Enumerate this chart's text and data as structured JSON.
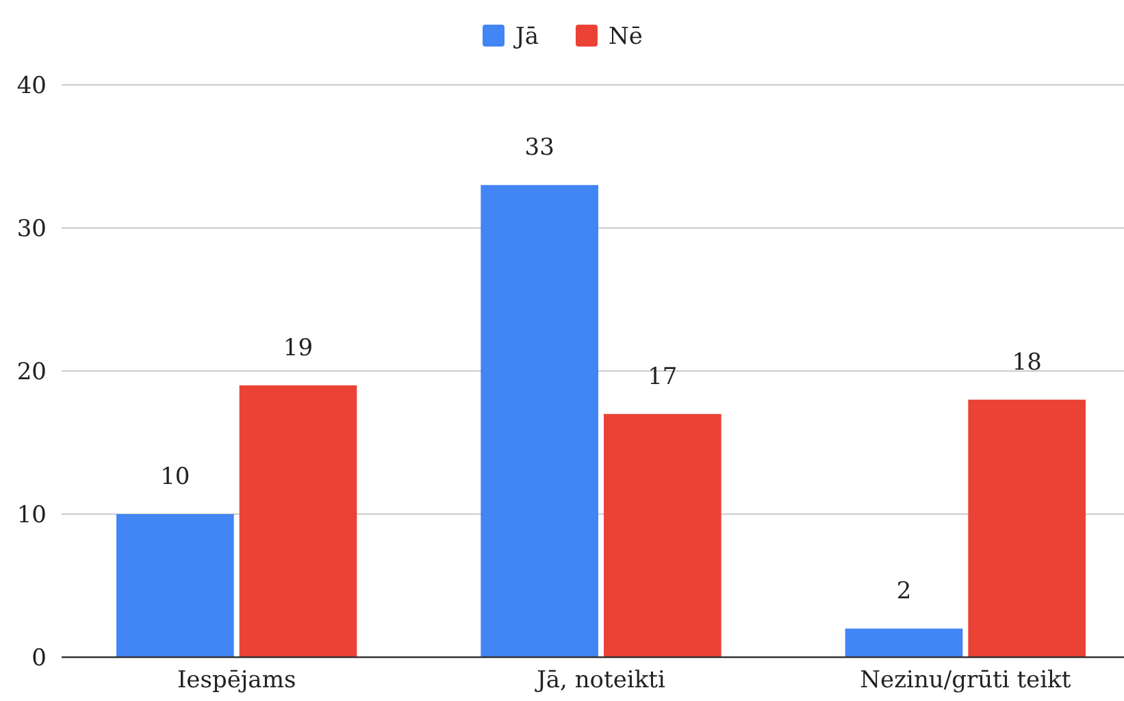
{
  "chart_data": {
    "type": "bar",
    "categories": [
      "Iespējams",
      "Jā, noteikti",
      "Nezinu/grūti teikt"
    ],
    "series": [
      {
        "name": "Jā",
        "color": "#4285f4",
        "values": [
          10,
          33,
          2
        ]
      },
      {
        "name": "Nē",
        "color": "#ea4335",
        "values": [
          19,
          17,
          18
        ]
      }
    ],
    "ylim": [
      0,
      40
    ],
    "yticks": [
      0,
      10,
      20,
      30,
      40
    ],
    "grid": "y",
    "legend": "top",
    "data_labels": true
  }
}
